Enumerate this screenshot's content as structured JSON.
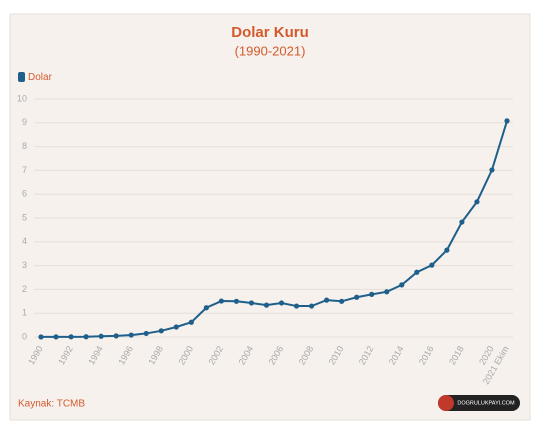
{
  "chart_data": {
    "type": "line",
    "title": "Dolar Kuru",
    "subtitle": "(1990-2021)",
    "categories": [
      "1990",
      null,
      "1992",
      null,
      "1994",
      null,
      "1996",
      null,
      "1998",
      null,
      "2000",
      null,
      "2002",
      null,
      "2004",
      null,
      "2006",
      null,
      "2008",
      null,
      "2010",
      null,
      "2012",
      null,
      "2014",
      null,
      "2016",
      null,
      "2018",
      null,
      "2020",
      "2021 Ekim"
    ],
    "series": [
      {
        "name": "Dolar",
        "color": "#1f5f8b",
        "values": [
          0.003,
          0.004,
          0.007,
          0.011,
          0.03,
          0.046,
          0.081,
          0.15,
          0.26,
          0.42,
          0.62,
          1.23,
          1.51,
          1.5,
          1.43,
          1.34,
          1.43,
          1.3,
          1.3,
          1.55,
          1.5,
          1.67,
          1.79,
          1.9,
          2.19,
          2.72,
          3.02,
          3.65,
          4.83,
          5.68,
          7.02,
          9.08
        ]
      }
    ],
    "ylim": [
      0,
      10
    ],
    "yticks": [
      0,
      1,
      2,
      3,
      4,
      5,
      6,
      7,
      8,
      9,
      10
    ],
    "grid": true,
    "legend": "top-left",
    "source": "Kaynak: TCMB",
    "logo": "DOGRULUKPAYI.COM"
  }
}
